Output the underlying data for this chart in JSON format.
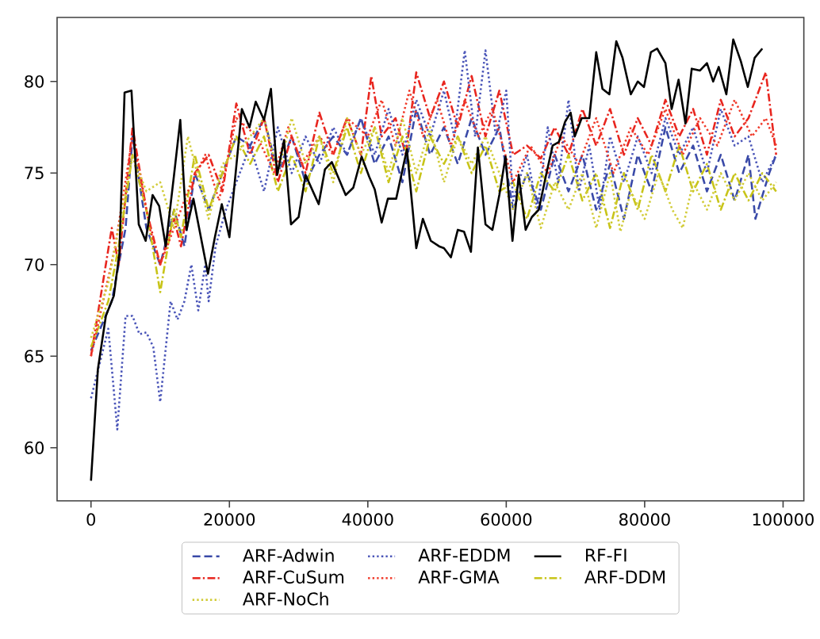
{
  "chart_data": {
    "type": "line",
    "xlim": [
      -4900,
      103000
    ],
    "ylim": [
      57.1,
      83.5
    ],
    "xticks": [
      0,
      20000,
      40000,
      60000,
      80000,
      100000
    ],
    "yticks": [
      60,
      65,
      70,
      75,
      80
    ],
    "legend": "bottom",
    "grid": false,
    "series": [
      {
        "name": "ARF-Adwin",
        "color": "#3a4aa8",
        "line_style": "dashed",
        "x": [
          0,
          3000,
          5000,
          6000,
          8000,
          10000,
          12000,
          13500,
          15000,
          17000,
          19000,
          21000,
          23000,
          25000,
          27000,
          29000,
          31000,
          33000,
          35000,
          37000,
          39000,
          41000,
          43000,
          45000,
          47000,
          49000,
          51000,
          53000,
          55000,
          57000,
          59000,
          61000,
          63000,
          65000,
          67000,
          69000,
          71000,
          73000,
          75000,
          77000,
          79000,
          81000,
          83000,
          85000,
          87000,
          89000,
          91000,
          93000,
          95000,
          96000,
          98000,
          99000
        ],
        "values": [
          65.3,
          68,
          72,
          77,
          72,
          70,
          73,
          71,
          75,
          73,
          75,
          77,
          76.5,
          78,
          75,
          77,
          74.5,
          76,
          77,
          76,
          78,
          75.5,
          77,
          74.5,
          78.5,
          76,
          77.5,
          75.5,
          78,
          76,
          77.5,
          73,
          75,
          73,
          76,
          74,
          76,
          73,
          75.5,
          72.5,
          76,
          74,
          77.5,
          75,
          76.5,
          74,
          76,
          73.5,
          76,
          72.5,
          75,
          76
        ]
      },
      {
        "name": "ARF-CuSum",
        "color": "#e8261f",
        "line_style": "dashdot",
        "x": [
          0,
          3000,
          4000,
          6000,
          8000,
          10000,
          12000,
          13000,
          15000,
          17000,
          19000,
          21000,
          23000,
          25000,
          27000,
          29000,
          31000,
          33000,
          35000,
          37000,
          39000,
          40500,
          42000,
          44000,
          45500,
          47000,
          49000,
          51000,
          53000,
          55000,
          57000,
          59000,
          61000,
          63000,
          65000,
          67000,
          69000,
          71000,
          73000,
          75000,
          77000,
          79000,
          81000,
          83000,
          85000,
          87000,
          89000,
          91000,
          93000,
          95000,
          97500,
          99000
        ],
        "values": [
          65,
          72,
          70,
          77.5,
          73,
          70,
          72.5,
          71,
          75,
          76,
          74,
          78.8,
          76,
          78,
          74.5,
          77,
          75,
          78.3,
          76,
          78,
          76,
          80.3,
          77,
          78,
          76,
          80.5,
          78,
          80,
          77.5,
          80.3,
          77,
          79.5,
          76,
          76.5,
          75.8,
          77.5,
          76,
          78.5,
          76.5,
          78.5,
          76,
          78,
          76.5,
          79,
          77,
          78.5,
          76,
          79,
          77,
          78,
          80.5,
          76
        ]
      },
      {
        "name": "ARF-DDM",
        "color": "#c8c419",
        "line_style": "dashdot",
        "x": [
          0,
          2500,
          4000,
          6000,
          8000,
          10000,
          12000,
          13000,
          15000,
          17000,
          19000,
          21000,
          23000,
          25000,
          27000,
          29000,
          31000,
          33000,
          35000,
          37000,
          39000,
          41000,
          43000,
          45000,
          47000,
          49000,
          51000,
          53000,
          55000,
          57000,
          59000,
          61000,
          63000,
          65000,
          67000,
          69000,
          71000,
          73000,
          75000,
          77000,
          79000,
          81000,
          83000,
          85000,
          87000,
          89000,
          91000,
          93000,
          95000,
          97000,
          99000
        ],
        "values": [
          65.5,
          68,
          71,
          76,
          73,
          68.5,
          73,
          71.5,
          76,
          73,
          75,
          77,
          75.5,
          77,
          74,
          76,
          74,
          77,
          75,
          77.5,
          75,
          77.5,
          74.5,
          77,
          74,
          77,
          75.5,
          77,
          75,
          76.5,
          74,
          74.5,
          72.5,
          75,
          74,
          76,
          73.5,
          75,
          72,
          75,
          73,
          76,
          74,
          76.5,
          74,
          75.5,
          73,
          75,
          73.5,
          75,
          74
        ]
      },
      {
        "name": "ARF-EDDM",
        "color": "#4a55b8",
        "line_style": "dotted",
        "x": [
          0,
          2500,
          3800,
          5000,
          6000,
          7000,
          8000,
          9000,
          10000,
          11500,
          12500,
          13500,
          14500,
          15500,
          16500,
          17000,
          18000,
          19500,
          21000,
          23000,
          25000,
          27000,
          29000,
          31000,
          33000,
          35000,
          37000,
          39000,
          41000,
          43000,
          45000,
          47000,
          49000,
          51000,
          52500,
          54000,
          55500,
          57000,
          58500,
          60000,
          61000,
          63000,
          64500,
          66000,
          67500,
          69000,
          70500,
          72000,
          73500,
          75000,
          77000,
          79000,
          81000,
          83000,
          85000,
          87000,
          89000,
          91000,
          93000,
          95000,
          97000,
          99000
        ],
        "values": [
          62.7,
          66.5,
          61,
          67.2,
          67.2,
          66.2,
          66.3,
          65.5,
          62.5,
          68,
          67,
          68,
          70,
          67.5,
          70,
          68,
          71,
          73,
          74.5,
          76.5,
          74,
          77.5,
          75,
          77,
          75.5,
          77.5,
          76,
          78,
          76,
          78.5,
          76,
          79,
          77,
          79.5,
          77,
          81.7,
          77,
          81.7,
          77,
          79.5,
          73.5,
          76,
          73,
          77.5,
          74.5,
          79,
          74,
          76.5,
          73,
          77,
          74.5,
          77,
          75,
          78,
          76,
          77.5,
          75,
          78.5,
          76.5,
          77,
          74.5,
          76
        ]
      },
      {
        "name": "ARF-GMA",
        "color": "#f03a2a",
        "line_style": "dotted",
        "x": [
          0,
          3500,
          6000,
          8500,
          10000,
          12000,
          14000,
          16500,
          18500,
          21000,
          24000,
          26500,
          28500,
          30500,
          33000,
          35000,
          37000,
          40000,
          42000,
          44000,
          46000,
          48000,
          50000,
          52000,
          54000,
          56000,
          58000,
          61000,
          63500,
          66000,
          68000,
          70500,
          73000,
          75500,
          78000,
          80500,
          83000,
          85500,
          88000,
          90500,
          93000,
          95500,
          97500,
          99000
        ],
        "values": [
          65,
          71,
          77,
          72,
          70,
          72,
          74,
          76,
          73.5,
          78,
          77,
          75,
          77.5,
          75.5,
          77,
          76,
          78,
          77,
          79,
          76.5,
          79.5,
          77,
          79,
          76.5,
          79,
          77,
          78.5,
          74.5,
          76.5,
          75,
          77,
          75.5,
          78,
          75,
          77.5,
          76,
          78.5,
          76,
          78,
          76.5,
          79,
          77,
          78,
          76.5
        ]
      },
      {
        "name": "ARF-NoCh",
        "color": "#d2cc3a",
        "line_style": "dotted",
        "x": [
          0,
          2500,
          4500,
          6000,
          8000,
          10000,
          12000,
          14000,
          17000,
          19000,
          21000,
          23000,
          25000,
          27000,
          29000,
          31000,
          33000,
          35000,
          37000,
          39000,
          41000,
          43000,
          45000,
          47000,
          49000,
          51000,
          53000,
          55000,
          57000,
          59000,
          61000,
          63000,
          65000,
          67000,
          69000,
          71000,
          73000,
          75000,
          76500,
          78000,
          80000,
          82000,
          84000,
          85500,
          87000,
          89000,
          91000,
          93000,
          95000,
          97000,
          99000
        ],
        "values": [
          66,
          69,
          73,
          76,
          74,
          74.5,
          72,
          77,
          72.5,
          75.5,
          76,
          77,
          78,
          75,
          78,
          75.5,
          77,
          74.5,
          78,
          76,
          77.5,
          75,
          78,
          75,
          77.5,
          74.5,
          77,
          75.5,
          77,
          75,
          73,
          75,
          72,
          74.5,
          73,
          75,
          72,
          75,
          71.8,
          74,
          72.5,
          75,
          73,
          72,
          74.5,
          73,
          75,
          73.5,
          75,
          73.5,
          74.5
        ]
      },
      {
        "name": "RF-FI",
        "color": "#000000",
        "line_style": "solid",
        "x": [
          0,
          1000,
          2150,
          3300,
          4100,
          4850,
          5850,
          6900,
          7900,
          8900,
          9850,
          10800,
          12000,
          12900,
          13800,
          14800,
          16900,
          17900,
          18900,
          20000,
          21800,
          22900,
          23800,
          25000,
          26000,
          26900,
          27900,
          28900,
          30000,
          31000,
          32900,
          33800,
          34800,
          36800,
          37900,
          39100,
          40200,
          41000,
          42000,
          42900,
          44100,
          45650,
          47000,
          47950,
          49100,
          50300,
          51000,
          52000,
          53000,
          53900,
          54900,
          55900,
          57000,
          58000,
          59000,
          59900,
          60900,
          61800,
          62800,
          63700,
          64700,
          65700,
          66700,
          67600,
          68500,
          69300,
          69900,
          70900,
          72000,
          73000,
          73900,
          74900,
          75900,
          76800,
          78000,
          79000,
          79900,
          80900,
          81800,
          83000,
          83900,
          84900,
          85900,
          86800,
          88000,
          89000,
          89900,
          90700,
          91800,
          92800,
          93900,
          94900,
          95900,
          97000
        ],
        "values": [
          58.2,
          64.3,
          67.2,
          68.3,
          70.6,
          79.4,
          79.5,
          72.2,
          71.3,
          73.8,
          73.2,
          71,
          74.9,
          77.9,
          71.9,
          73.6,
          69.5,
          71.5,
          73.3,
          71.5,
          78.5,
          77.5,
          78.9,
          77.9,
          79.6,
          74.9,
          76.8,
          72.2,
          72.6,
          74.9,
          73.3,
          75.2,
          75.6,
          73.8,
          74.2,
          75.9,
          74.8,
          74.1,
          72.3,
          73.6,
          73.6,
          76.3,
          70.9,
          72.5,
          71.3,
          71,
          70.9,
          70.4,
          71.9,
          71.8,
          70.7,
          76.4,
          72.2,
          71.9,
          73.8,
          75.9,
          71.3,
          74.9,
          71.9,
          72.6,
          73,
          74.8,
          76.5,
          76.7,
          77.8,
          78.3,
          77,
          78,
          78,
          81.6,
          79.6,
          79.3,
          82.2,
          81.3,
          79.3,
          80,
          79.7,
          81.6,
          81.8,
          81,
          78.5,
          80.1,
          77.7,
          80.7,
          80.6,
          81,
          80,
          80.8,
          79.3,
          82.3,
          81.1,
          79.7,
          81.3,
          81.8
        ]
      }
    ]
  }
}
